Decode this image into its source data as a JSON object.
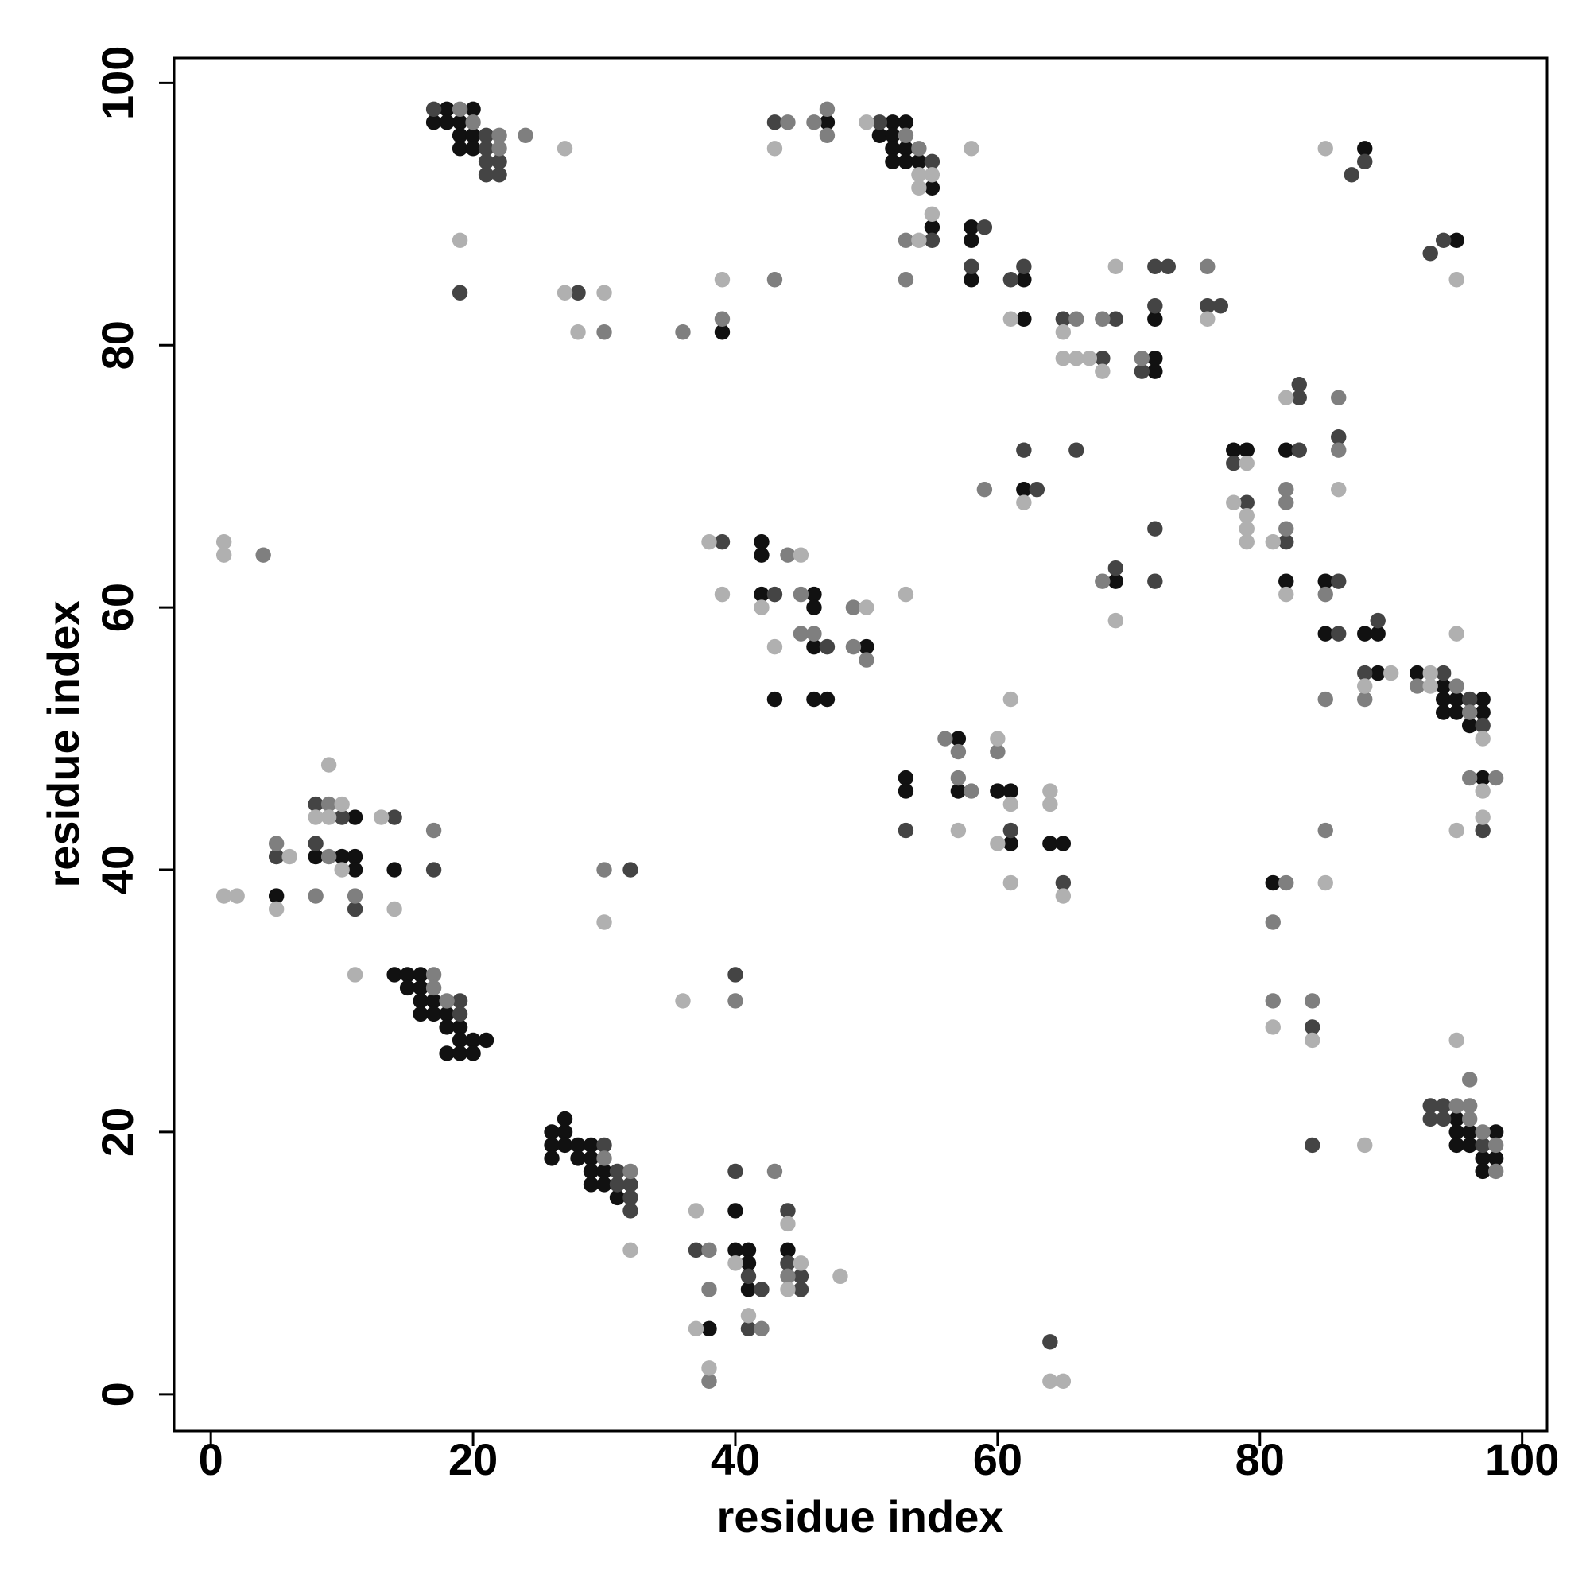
{
  "chart_data": {
    "type": "scatter",
    "x_label": "residue index",
    "y_label": "residue index",
    "xlim": [
      -2.8,
      101.9
    ],
    "ylim": [
      -2.8,
      101.9
    ],
    "xticks": [
      0,
      20,
      40,
      60,
      80,
      100
    ],
    "yticks": [
      0,
      20,
      40,
      60,
      80,
      100
    ],
    "grid": false,
    "series": [
      {
        "color": "#111111",
        "x": [
          18,
          20,
          17,
          18,
          19,
          19,
          20,
          19,
          20,
          39,
          47,
          52,
          53,
          51,
          52,
          52,
          53,
          52,
          53,
          54,
          55,
          55,
          58,
          58,
          58,
          62,
          62,
          72,
          72,
          72,
          88,
          95,
          78,
          79,
          82,
          82,
          85,
          85,
          88,
          89,
          89,
          92,
          94,
          94,
          95,
          97,
          94,
          95,
          97,
          96,
          97,
          62,
          69,
          42,
          42,
          42,
          46,
          46,
          46,
          50,
          43,
          46,
          47,
          57,
          53,
          53,
          57,
          60,
          61,
          61,
          64,
          65,
          11,
          8,
          10,
          11,
          11,
          14,
          5,
          14,
          15,
          16,
          15,
          16,
          16,
          17,
          16,
          17,
          18,
          18,
          19,
          19,
          20,
          21,
          18,
          19,
          20,
          26,
          27,
          27,
          26,
          27,
          28,
          29,
          26,
          28,
          29,
          29,
          30,
          29,
          30,
          31,
          40,
          40,
          41,
          44,
          41,
          41,
          38,
          81,
          95,
          95,
          96,
          98,
          95,
          96,
          97,
          98,
          97
        ],
        "y": [
          98,
          98,
          97,
          97,
          97,
          96,
          96,
          95,
          95,
          81,
          97,
          97,
          97,
          96,
          96,
          95,
          95,
          94,
          94,
          94,
          92,
          89,
          89,
          88,
          85,
          85,
          82,
          78,
          79,
          82,
          95,
          88,
          72,
          72,
          72,
          62,
          62,
          58,
          58,
          58,
          55,
          55,
          54,
          53,
          53,
          53,
          52,
          52,
          52,
          51,
          47,
          69,
          62,
          65,
          64,
          61,
          61,
          60,
          57,
          57,
          53,
          53,
          53,
          50,
          47,
          46,
          46,
          46,
          46,
          42,
          42,
          42,
          44,
          41,
          41,
          41,
          40,
          40,
          38,
          32,
          32,
          32,
          31,
          31,
          30,
          30,
          29,
          29,
          29,
          28,
          28,
          27,
          27,
          27,
          26,
          26,
          26,
          20,
          20,
          21,
          19,
          19,
          19,
          19,
          18,
          18,
          18,
          17,
          17,
          16,
          16,
          15,
          14,
          11,
          11,
          11,
          10,
          8,
          5,
          39,
          21,
          20,
          20,
          20,
          19,
          19,
          18,
          18,
          17
        ]
      },
      {
        "color": "#444444",
        "x": [
          17,
          21,
          21,
          21,
          22,
          21,
          22,
          19,
          28,
          43,
          51,
          55,
          55,
          59,
          58,
          61,
          62,
          65,
          68,
          69,
          71,
          72,
          72,
          73,
          76,
          77,
          88,
          87,
          93,
          94,
          83,
          83,
          78,
          83,
          86,
          79,
          82,
          86,
          86,
          89,
          88,
          94,
          96,
          97,
          97,
          62,
          66,
          63,
          72,
          72,
          69,
          39,
          43,
          47,
          53,
          61,
          65,
          8,
          10,
          14,
          5,
          8,
          17,
          11,
          32,
          19,
          19,
          40,
          30,
          31,
          31,
          32,
          32,
          32,
          40,
          44,
          37,
          44,
          41,
          45,
          42,
          45,
          41,
          64,
          84,
          84,
          93,
          94,
          93,
          94,
          97
        ],
        "y": [
          98,
          96,
          95,
          94,
          94,
          93,
          93,
          84,
          84,
          97,
          97,
          94,
          88,
          89,
          86,
          85,
          86,
          82,
          79,
          82,
          78,
          83,
          86,
          86,
          83,
          83,
          94,
          93,
          87,
          88,
          77,
          76,
          71,
          72,
          73,
          68,
          65,
          62,
          58,
          59,
          55,
          55,
          53,
          51,
          43,
          72,
          72,
          69,
          66,
          62,
          63,
          65,
          61,
          57,
          43,
          43,
          39,
          45,
          44,
          44,
          41,
          42,
          40,
          37,
          40,
          30,
          29,
          32,
          19,
          17,
          16,
          16,
          15,
          14,
          17,
          14,
          11,
          10,
          9,
          9,
          8,
          8,
          5,
          4,
          28,
          19,
          22,
          22,
          21,
          21,
          19
        ]
      },
      {
        "color": "#7f7f7f",
        "x": [
          19,
          20,
          22,
          22,
          24,
          30,
          36,
          39,
          43,
          44,
          46,
          47,
          47,
          53,
          54,
          53,
          53,
          66,
          68,
          71,
          76,
          86,
          86,
          82,
          82,
          82,
          85,
          85,
          88,
          92,
          95,
          96,
          96,
          98,
          59,
          68,
          45,
          44,
          45,
          46,
          49,
          49,
          50,
          56,
          57,
          60,
          57,
          58,
          4,
          9,
          5,
          9,
          17,
          8,
          11,
          30,
          17,
          17,
          18,
          40,
          30,
          32,
          43,
          38,
          44,
          38,
          42,
          38,
          82,
          85,
          81,
          81,
          84,
          96,
          95,
          96,
          96,
          97,
          98,
          98
        ],
        "y": [
          98,
          97,
          96,
          95,
          96,
          81,
          81,
          82,
          85,
          97,
          97,
          98,
          96,
          96,
          95,
          88,
          85,
          82,
          82,
          79,
          86,
          76,
          72,
          69,
          68,
          66,
          61,
          53,
          53,
          54,
          54,
          52,
          47,
          47,
          69,
          62,
          61,
          64,
          58,
          58,
          60,
          57,
          56,
          50,
          49,
          49,
          47,
          46,
          64,
          45,
          42,
          41,
          43,
          38,
          38,
          40,
          32,
          31,
          30,
          30,
          18,
          17,
          17,
          11,
          9,
          8,
          5,
          1,
          39,
          43,
          36,
          30,
          30,
          24,
          22,
          22,
          21,
          20,
          19,
          17
        ]
      },
      {
        "color": "#b0b0b0",
        "x": [
          27,
          19,
          27,
          30,
          28,
          39,
          43,
          50,
          54,
          55,
          54,
          55,
          54,
          58,
          61,
          65,
          65,
          66,
          67,
          68,
          69,
          76,
          85,
          95,
          82,
          79,
          86,
          78,
          79,
          79,
          79,
          81,
          82,
          90,
          88,
          93,
          93,
          97,
          97,
          97,
          95,
          95,
          62,
          69,
          53,
          38,
          39,
          42,
          45,
          43,
          50,
          61,
          60,
          61,
          57,
          60,
          64,
          64,
          61,
          65,
          1,
          1,
          9,
          10,
          8,
          9,
          13,
          6,
          10,
          1,
          2,
          5,
          14,
          11,
          30,
          36,
          32,
          37,
          44,
          40,
          45,
          48,
          44,
          41,
          37,
          38,
          64,
          65,
          85,
          81,
          84,
          88,
          95
        ],
        "y": [
          95,
          88,
          84,
          84,
          81,
          85,
          95,
          97,
          93,
          93,
          92,
          90,
          88,
          95,
          82,
          81,
          79,
          79,
          79,
          78,
          86,
          82,
          95,
          85,
          76,
          71,
          69,
          68,
          67,
          66,
          65,
          65,
          61,
          55,
          54,
          55,
          54,
          50,
          46,
          44,
          43,
          58,
          68,
          59,
          61,
          65,
          61,
          60,
          64,
          57,
          60,
          53,
          50,
          45,
          43,
          42,
          46,
          45,
          39,
          38,
          65,
          64,
          48,
          45,
          44,
          44,
          44,
          41,
          40,
          38,
          38,
          37,
          37,
          32,
          36,
          30,
          11,
          14,
          13,
          10,
          10,
          9,
          8,
          6,
          5,
          2,
          1,
          1,
          39,
          28,
          27,
          19,
          27
        ]
      }
    ]
  }
}
